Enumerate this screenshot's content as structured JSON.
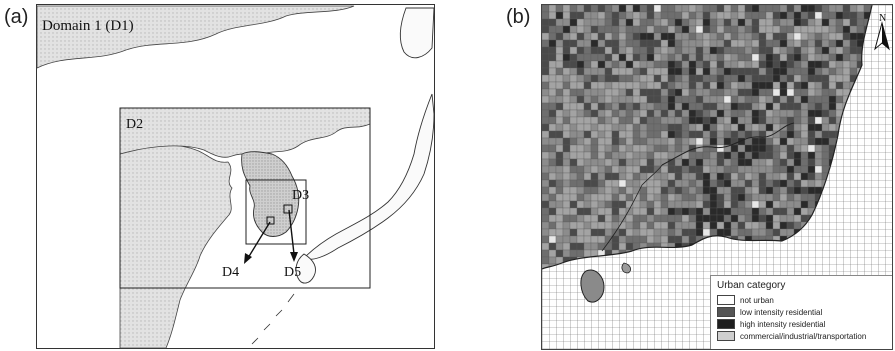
{
  "panel_a": {
    "label": "(a)",
    "domain_title": "Domain 1 (D1)",
    "domains": [
      "D2",
      "D3",
      "D4",
      "D5"
    ]
  },
  "panel_b": {
    "label": "(b)",
    "north_label": "N",
    "legend": {
      "title": "Urban category",
      "items": [
        {
          "label": "not urban",
          "color": "#ffffff"
        },
        {
          "label": "low intensity residential",
          "color": "#555555"
        },
        {
          "label": "high intensity residential",
          "color": "#1e1e1e"
        },
        {
          "label": "commercial/industrial/transportation",
          "color": "#cfcfcf"
        }
      ]
    }
  },
  "colors": {
    "land": "#dcdcdc",
    "dense_land": "#7a7a7a",
    "sea": "#ffffff",
    "grid": "#555555",
    "coast": "#333333"
  }
}
